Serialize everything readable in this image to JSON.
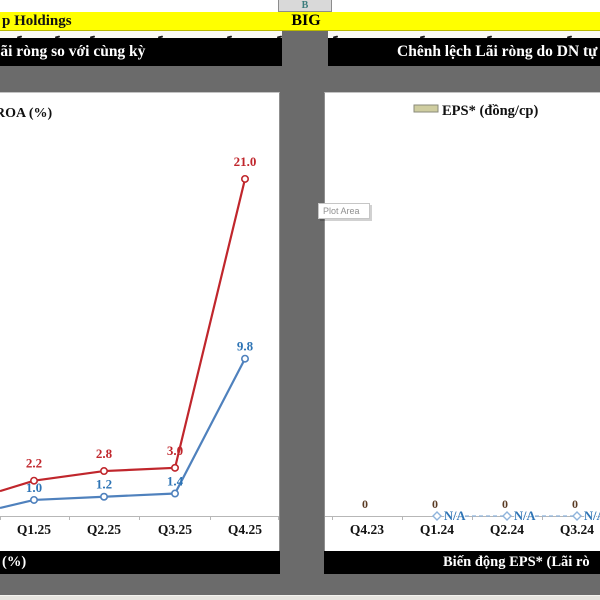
{
  "window": {
    "column_header_label": "B"
  },
  "title_bar": {
    "left_text": "p Holdings",
    "ticker": "BIG"
  },
  "section_headers": {
    "left": "Lãi ròng so với cùng kỳ",
    "right": "Chênh lệch Lãi ròng do DN tự"
  },
  "section_footers": {
    "left": "(%)",
    "right": "Biến động EPS* (Lãi rò"
  },
  "tooltip": {
    "label": "Plot Area"
  },
  "colors": {
    "accent_yellow": "#ffff00",
    "background_gray": "#6b6b6b",
    "red_series": "#c0262c",
    "blue_series": "#4f81bd",
    "blue_label": "#2e74b5",
    "zero_label": "#5a3a22",
    "na_series": "#8fb4dc",
    "eps_swatch": "#cfcda0",
    "axis_gray": "#b7b7b7",
    "header_letter_teal": "#3a7c7c"
  },
  "chart_data": [
    {
      "type": "line",
      "title": "",
      "legend_visible": "ROA (%)",
      "legend_position": "top-left",
      "gridlines": false,
      "categories": [
        "Q1.25",
        "Q2.25",
        "Q3.25",
        "Q4.25"
      ],
      "ylim": [
        0,
        22
      ],
      "series": [
        {
          "name": "",
          "color": "#c0262c",
          "label_color": "#c0262c",
          "values": [
            2.2,
            2.8,
            3.0,
            21.0
          ],
          "labels": [
            "2.2",
            "2.8",
            "3.0",
            "21.0"
          ],
          "edge_entry_value": 1.55
        },
        {
          "name": "",
          "color": "#4f81bd",
          "label_color": "#2e74b5",
          "values": [
            1.0,
            1.2,
            1.4,
            9.8
          ],
          "labels": [
            "1.0",
            "1.2",
            "1.4",
            "9.8"
          ],
          "edge_entry_value": 0.5
        }
      ]
    },
    {
      "type": "line",
      "title": "",
      "legend_visible": "EPS* (đồng/cp)",
      "legend_position": "top-center",
      "gridlines": false,
      "categories": [
        "Q4.23",
        "Q1.24",
        "Q2.24",
        "Q3.24"
      ],
      "ylim": [
        0,
        1
      ],
      "series": [
        {
          "name": "EPS* (đồng/cp)",
          "color": "#8fb4dc",
          "style": "dashed",
          "values": [
            0,
            0,
            0,
            0
          ],
          "labels": [
            "0",
            "0",
            "0",
            "0"
          ],
          "na_labels": [
            null,
            "N/A",
            "N/A",
            "N/A"
          ]
        }
      ]
    }
  ]
}
